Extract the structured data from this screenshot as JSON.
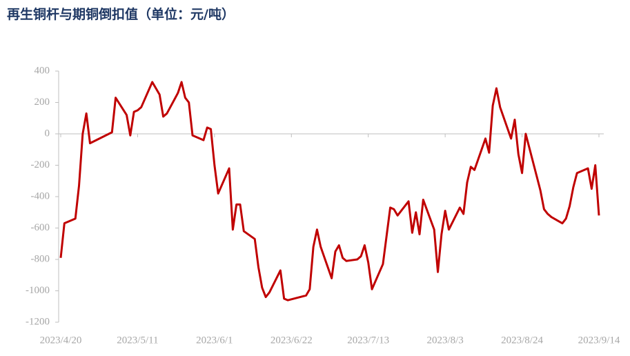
{
  "chart_data": {
    "type": "line",
    "title": "再生铜杆与期铜倒扣值（单位：元/吨）",
    "x": [
      "2023/4/20",
      "2023/4/21",
      "2023/4/24",
      "2023/4/25",
      "2023/4/26",
      "2023/4/27",
      "2023/4/28",
      "2023/5/4",
      "2023/5/5",
      "2023/5/8",
      "2023/5/9",
      "2023/5/10",
      "2023/5/11",
      "2023/5/12",
      "2023/5/15",
      "2023/5/16",
      "2023/5/17",
      "2023/5/18",
      "2023/5/19",
      "2023/5/22",
      "2023/5/23",
      "2023/5/24",
      "2023/5/25",
      "2023/5/26",
      "2023/5/29",
      "2023/5/30",
      "2023/5/31",
      "2023/6/1",
      "2023/6/2",
      "2023/6/5",
      "2023/6/6",
      "2023/6/7",
      "2023/6/8",
      "2023/6/9",
      "2023/6/12",
      "2023/6/13",
      "2023/6/14",
      "2023/6/15",
      "2023/6/16",
      "2023/6/19",
      "2023/6/20",
      "2023/6/21",
      "2023/6/26",
      "2023/6/27",
      "2023/6/28",
      "2023/6/29",
      "2023/6/30",
      "2023/7/3",
      "2023/7/4",
      "2023/7/5",
      "2023/7/6",
      "2023/7/7",
      "2023/7/10",
      "2023/7/11",
      "2023/7/12",
      "2023/7/13",
      "2023/7/14",
      "2023/7/17",
      "2023/7/18",
      "2023/7/19",
      "2023/7/20",
      "2023/7/21",
      "2023/7/24",
      "2023/7/25",
      "2023/7/26",
      "2023/7/27",
      "2023/7/28",
      "2023/7/31",
      "2023/8/1",
      "2023/8/2",
      "2023/8/3",
      "2023/8/4",
      "2023/8/7",
      "2023/8/8",
      "2023/8/9",
      "2023/8/10",
      "2023/8/11",
      "2023/8/14",
      "2023/8/15",
      "2023/8/16",
      "2023/8/17",
      "2023/8/18",
      "2023/8/21",
      "2023/8/22",
      "2023/8/23",
      "2023/8/24",
      "2023/8/25",
      "2023/8/28",
      "2023/8/29",
      "2023/8/30",
      "2023/8/31",
      "2023/9/1",
      "2023/9/4",
      "2023/9/5",
      "2023/9/6",
      "2023/9/7",
      "2023/9/8",
      "2023/9/11",
      "2023/9/12",
      "2023/9/13",
      "2023/9/14"
    ],
    "series": [
      {
        "color": "#c00000",
        "values": [
          -790,
          -570,
          -540,
          -330,
          0,
          130,
          -60,
          10,
          230,
          120,
          -10,
          140,
          150,
          170,
          330,
          290,
          250,
          110,
          130,
          260,
          330,
          230,
          200,
          -10,
          -40,
          40,
          30,
          -200,
          -380,
          -220,
          -610,
          -450,
          -450,
          -620,
          -670,
          -850,
          -980,
          -1040,
          -1010,
          -870,
          -1050,
          -1060,
          -1030,
          -990,
          -720,
          -610,
          -720,
          -920,
          -750,
          -710,
          -790,
          -810,
          -800,
          -780,
          -710,
          -820,
          -990,
          -830,
          -650,
          -470,
          -480,
          -520,
          -430,
          -630,
          -500,
          -640,
          -420,
          -610,
          -880,
          -640,
          -490,
          -610,
          -470,
          -510,
          -310,
          -210,
          -230,
          -30,
          -120,
          180,
          290,
          170,
          -30,
          90,
          -130,
          -250,
          0,
          -270,
          -360,
          -480,
          -510,
          -530,
          -570,
          -540,
          -460,
          -340,
          -250,
          -220,
          -350,
          -200,
          -520
        ]
      }
    ],
    "xlim": [
      "2023/4/20",
      "2023/9/14"
    ],
    "xticks": [
      "2023/4/20",
      "2023/5/11",
      "2023/6/1",
      "2023/6/22",
      "2023/7/13",
      "2023/8/3",
      "2023/8/24",
      "2023/9/14"
    ],
    "ylim": [
      -1200,
      400
    ],
    "yticks": [
      400,
      200,
      0,
      -200,
      -400,
      -600,
      -800,
      -1000,
      -1200
    ]
  }
}
